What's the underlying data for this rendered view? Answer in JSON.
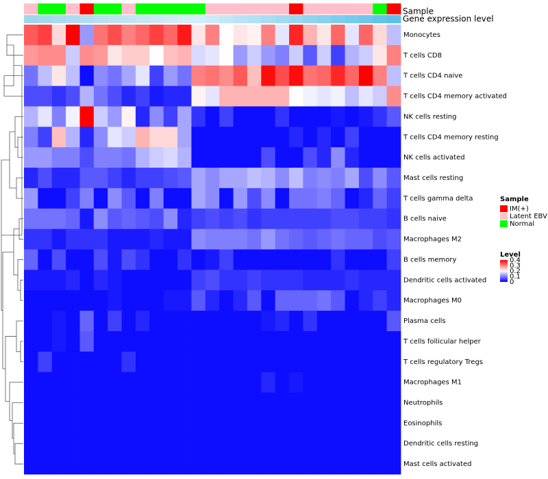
{
  "chart_data": {
    "type": "heatmap",
    "title": "",
    "annotation_labels": {
      "sample": "Sample",
      "expression": "Gene expression level"
    },
    "sample_colors": {
      "IM(+)": "#ff0000",
      "Latent EBV": "#ffc0cb",
      "Normal": "#00ff00"
    },
    "samples": [
      "Latent EBV",
      "Normal",
      "Normal",
      "Latent EBV",
      "IM(+)",
      "Normal",
      "Normal",
      "Latent EBV",
      "Normal",
      "Normal",
      "Normal",
      "Normal",
      "Normal",
      "Latent EBV",
      "Latent EBV",
      "Latent EBV",
      "Latent EBV",
      "Latent EBV",
      "Latent EBV",
      "IM(+)",
      "Latent EBV",
      "Latent EBV",
      "Latent EBV",
      "Latent EBV",
      "Latent EBV",
      "Normal",
      "IM(+)"
    ],
    "expression_gradient": [
      "#9fd6ee",
      "#d7eef8",
      "#5cc0ea"
    ],
    "rows": [
      "Monocytes",
      "T cells CD8",
      "T cells CD4 naive",
      "T cells CD4 memory activated",
      "NK cells resting",
      "T cells CD4 memory resting",
      "NK cells activated",
      "Mast cells resting",
      "T cells gamma delta",
      "B cells naive",
      "Macrophages M2",
      "B cells memory",
      "Dendritic cells activated",
      "Macrophages M0",
      "Plasma cells",
      "T cells follicular helper",
      "T cells regulatory  Tregs",
      "Macrophages M1",
      "Neutrophils",
      "Eosinophils",
      "Dendritic cells resting",
      "Mast cells activated"
    ],
    "values": [
      [
        0.33,
        0.35,
        0.23,
        0.4,
        0.12,
        0.31,
        0.34,
        0.3,
        0.32,
        0.35,
        0.32,
        0.38,
        0.22,
        0.3,
        0.2,
        0.22,
        0.21,
        0.3,
        0.18,
        0.37,
        0.26,
        0.22,
        0.32,
        0.18,
        0.32,
        0.23,
        0.15
      ],
      [
        0.28,
        0.29,
        0.29,
        0.16,
        0.29,
        0.28,
        0.22,
        0.24,
        0.24,
        0.2,
        0.25,
        0.26,
        0.17,
        0.18,
        0.2,
        0.12,
        0.16,
        0.12,
        0.1,
        0.16,
        0.07,
        0.16,
        0.05,
        0.14,
        0.16,
        0.22,
        0.3
      ],
      [
        0.09,
        0.15,
        0.22,
        0.15,
        0.01,
        0.11,
        0.09,
        0.13,
        0.18,
        0.05,
        0.12,
        0.09,
        0.3,
        0.31,
        0.29,
        0.33,
        0.25,
        0.39,
        0.34,
        0.39,
        0.31,
        0.32,
        0.37,
        0.32,
        0.4,
        0.3,
        0.15
      ],
      [
        0.06,
        0.06,
        0.04,
        0.06,
        0.14,
        0.09,
        0.06,
        0.03,
        0.05,
        0.02,
        0.03,
        0.03,
        0.21,
        0.18,
        0.26,
        0.26,
        0.26,
        0.26,
        0.26,
        0.2,
        0.19,
        0.18,
        0.19,
        0.15,
        0.18,
        0.16,
        0.29
      ],
      [
        0.14,
        0.18,
        0.1,
        0.19,
        0.4,
        0.16,
        0.12,
        0.21,
        0.03,
        0.11,
        0.05,
        0.13,
        0.04,
        0.01,
        0.05,
        0.01,
        0.01,
        0.01,
        0.04,
        0.01,
        0.01,
        0.01,
        0.02,
        0.01,
        0.02,
        0.04,
        0.07
      ],
      [
        0.1,
        0.05,
        0.25,
        0.14,
        0.03,
        0.11,
        0.18,
        0.16,
        0.26,
        0.23,
        0.23,
        0.13,
        0.01,
        0.01,
        0.01,
        0.01,
        0.01,
        0.01,
        0.01,
        0.03,
        0.01,
        0.03,
        0.01,
        0.05,
        0.01,
        0.01,
        0.01
      ],
      [
        0.12,
        0.12,
        0.1,
        0.1,
        0.06,
        0.1,
        0.1,
        0.09,
        0.14,
        0.16,
        0.17,
        0.14,
        0.01,
        0.01,
        0.01,
        0.01,
        0.01,
        0.06,
        0.01,
        0.01,
        0.06,
        0.03,
        0.11,
        0.03,
        0.01,
        0.01,
        0.01
      ],
      [
        0.03,
        0.06,
        0.03,
        0.03,
        0.07,
        0.07,
        0.05,
        0.03,
        0.05,
        0.05,
        0.06,
        0.07,
        0.13,
        0.11,
        0.13,
        0.13,
        0.15,
        0.14,
        0.11,
        0.15,
        0.1,
        0.11,
        0.1,
        0.13,
        0.06,
        0.11,
        0.07
      ],
      [
        0.12,
        0.01,
        0.01,
        0.05,
        0.1,
        0.01,
        0.11,
        0.07,
        0.01,
        0.1,
        0.01,
        0.01,
        0.13,
        0.11,
        0.01,
        0.12,
        0.06,
        0.11,
        0.01,
        0.09,
        0.09,
        0.1,
        0.08,
        0.01,
        0.03,
        0.08,
        0.05
      ],
      [
        0.09,
        0.09,
        0.09,
        0.08,
        0.02,
        0.11,
        0.07,
        0.08,
        0.07,
        0.06,
        0.11,
        0.03,
        0.05,
        0.06,
        0.05,
        0.06,
        0.04,
        0.05,
        0.05,
        0.05,
        0.05,
        0.05,
        0.06,
        0.06,
        0.05,
        0.05,
        0.04
      ],
      [
        0.04,
        0.04,
        0.02,
        0.04,
        0.04,
        0.04,
        0.02,
        0.02,
        0.02,
        0.03,
        0.02,
        0.02,
        0.11,
        0.1,
        0.1,
        0.1,
        0.09,
        0.12,
        0.09,
        0.08,
        0.07,
        0.08,
        0.09,
        0.08,
        0.08,
        0.06,
        0.07
      ],
      [
        0.08,
        0.01,
        0.06,
        0.01,
        0.01,
        0.06,
        0.02,
        0.06,
        0.04,
        0.01,
        0.01,
        0.04,
        0.01,
        0.02,
        0.05,
        0.01,
        0.01,
        0.01,
        0.01,
        0.01,
        0.01,
        0.01,
        0.04,
        0.01,
        0.01,
        0.01,
        0.05
      ],
      [
        0.02,
        0.02,
        0.02,
        0.03,
        0.01,
        0.03,
        0.02,
        0.01,
        0.01,
        0.01,
        0.01,
        0.01,
        0.05,
        0.06,
        0.04,
        0.04,
        0.05,
        0.04,
        0.04,
        0.04,
        0.03,
        0.03,
        0.03,
        0.04,
        0.03,
        0.03,
        0.03
      ],
      [
        0.01,
        0.01,
        0.01,
        0.01,
        0.01,
        0.01,
        0.02,
        0.01,
        0.01,
        0.01,
        0.02,
        0.02,
        0.07,
        0.03,
        0.01,
        0.03,
        0.07,
        0.01,
        0.08,
        0.08,
        0.08,
        0.09,
        0.07,
        0.01,
        0.03,
        0.05,
        0.03
      ],
      [
        0.01,
        0.01,
        0.02,
        0.01,
        0.08,
        0.01,
        0.05,
        0.01,
        0.03,
        0.01,
        0.01,
        0.01,
        0.01,
        0.01,
        0.01,
        0.01,
        0.01,
        0.02,
        0.03,
        0.01,
        0.04,
        0.01,
        0.01,
        0.01,
        0.01,
        0.01,
        0.07
      ],
      [
        0.01,
        0.01,
        0.02,
        0.01,
        0.07,
        0.01,
        0.01,
        0.01,
        0.01,
        0.01,
        0.01,
        0.01,
        0.01,
        0.01,
        0.01,
        0.01,
        0.01,
        0.01,
        0.01,
        0.01,
        0.01,
        0.01,
        0.01,
        0.01,
        0.01,
        0.01,
        0.01
      ],
      [
        0.01,
        0.05,
        0.01,
        0.01,
        0.01,
        0.01,
        0.01,
        0.04,
        0.01,
        0.01,
        0.01,
        0.01,
        0.01,
        0.01,
        0.01,
        0.01,
        0.01,
        0.01,
        0.01,
        0.01,
        0.01,
        0.01,
        0.01,
        0.01,
        0.01,
        0.01,
        0.01
      ],
      [
        0.01,
        0.01,
        0.01,
        0.01,
        0.01,
        0.01,
        0.01,
        0.01,
        0.01,
        0.01,
        0.01,
        0.01,
        0.01,
        0.01,
        0.01,
        0.01,
        0.01,
        0.03,
        0.01,
        0.02,
        0.01,
        0.01,
        0.01,
        0.01,
        0.01,
        0.01,
        0.01
      ],
      [
        0.01,
        0.01,
        0.01,
        0.01,
        0.01,
        0.01,
        0.01,
        0.01,
        0.01,
        0.01,
        0.01,
        0.01,
        0.01,
        0.01,
        0.01,
        0.01,
        0.01,
        0.01,
        0.01,
        0.01,
        0.01,
        0.01,
        0.01,
        0.01,
        0.01,
        0.01,
        0.01
      ],
      [
        0.01,
        0.01,
        0.01,
        0.01,
        0.01,
        0.01,
        0.01,
        0.01,
        0.01,
        0.01,
        0.01,
        0.01,
        0.01,
        0.01,
        0.01,
        0.01,
        0.01,
        0.01,
        0.01,
        0.01,
        0.01,
        0.01,
        0.01,
        0.01,
        0.01,
        0.01,
        0.01
      ],
      [
        0.01,
        0.01,
        0.01,
        0.01,
        0.01,
        0.01,
        0.01,
        0.01,
        0.01,
        0.01,
        0.01,
        0.01,
        0.01,
        0.01,
        0.01,
        0.01,
        0.01,
        0.01,
        0.01,
        0.01,
        0.01,
        0.01,
        0.01,
        0.01,
        0.01,
        0.01,
        0.01
      ],
      [
        0.01,
        0.01,
        0.01,
        0.01,
        0.01,
        0.01,
        0.01,
        0.01,
        0.01,
        0.01,
        0.01,
        0.01,
        0.01,
        0.01,
        0.01,
        0.01,
        0.01,
        0.01,
        0.01,
        0.01,
        0.01,
        0.01,
        0.01,
        0.01,
        0.01,
        0.01,
        0.01
      ]
    ],
    "color_scale": {
      "low": "#0000ff",
      "mid": "#ffffff",
      "high": "#ff0000",
      "range": [
        0,
        0.4
      ],
      "midpoint": 0.2
    },
    "legend": {
      "sample_title": "Sample",
      "sample_entries": [
        "IM(+)",
        "Latent EBV",
        "Normal"
      ],
      "level_title": "Level",
      "level_ticks": [
        "0.4",
        "0.3",
        "0.2",
        "0.1",
        "0"
      ],
      "level_tick_values": [
        0.4,
        0.3,
        0.2,
        0.1,
        0
      ],
      "position": "right"
    },
    "row_dendrogram": true
  }
}
